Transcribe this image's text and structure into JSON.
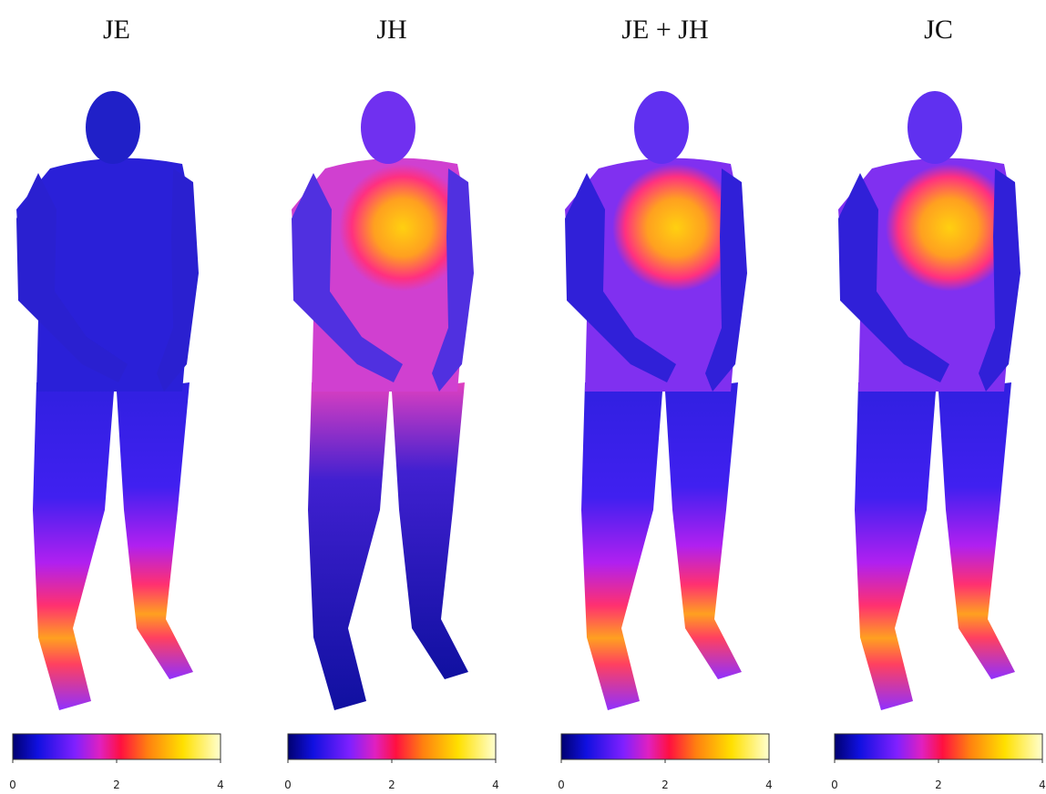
{
  "panels": [
    {
      "title": "JE",
      "colorbar": {
        "range": [
          0,
          4
        ],
        "ticks": [
          0,
          2,
          4
        ]
      }
    },
    {
      "title": "JH",
      "colorbar": {
        "range": [
          0,
          4
        ],
        "ticks": [
          0,
          2,
          4
        ]
      }
    },
    {
      "title": "JE + JH",
      "colorbar": {
        "range": [
          0,
          4
        ],
        "ticks": [
          0,
          2,
          4
        ]
      }
    },
    {
      "title": "JC",
      "colorbar": {
        "range": [
          0,
          4
        ],
        "ticks": [
          0,
          2,
          4
        ]
      }
    }
  ]
}
